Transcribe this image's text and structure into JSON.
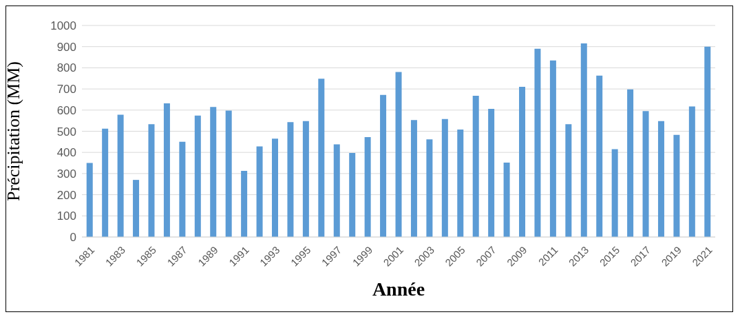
{
  "chart_data": {
    "type": "bar",
    "xlabel": "Année",
    "ylabel": "Précipitation (MM)",
    "categories": [
      "1981",
      null,
      "1983",
      null,
      "1985",
      null,
      "1987",
      null,
      "1989",
      null,
      "1991",
      null,
      "1993",
      null,
      "1995",
      null,
      "1997",
      null,
      "1999",
      null,
      "2001",
      null,
      "2003",
      null,
      "2005",
      null,
      "2007",
      null,
      "2009",
      null,
      "2011",
      null,
      "2013",
      null,
      "2015",
      null,
      "2017",
      null,
      "2019",
      null,
      "2021"
    ],
    "values": [
      350,
      512,
      578,
      270,
      533,
      632,
      450,
      574,
      615,
      598,
      313,
      428,
      465,
      543,
      548,
      748,
      438,
      397,
      472,
      672,
      780,
      553,
      462,
      558,
      508,
      668,
      606,
      352,
      710,
      890,
      835,
      533,
      915,
      763,
      415,
      698,
      595,
      548,
      483,
      617,
      900
    ],
    "color": "#5b9bd5",
    "ylim": [
      0,
      1000
    ],
    "yticks": [
      0,
      100,
      200,
      300,
      400,
      500,
      600,
      700,
      800,
      900,
      1000
    ],
    "grid": "y"
  }
}
